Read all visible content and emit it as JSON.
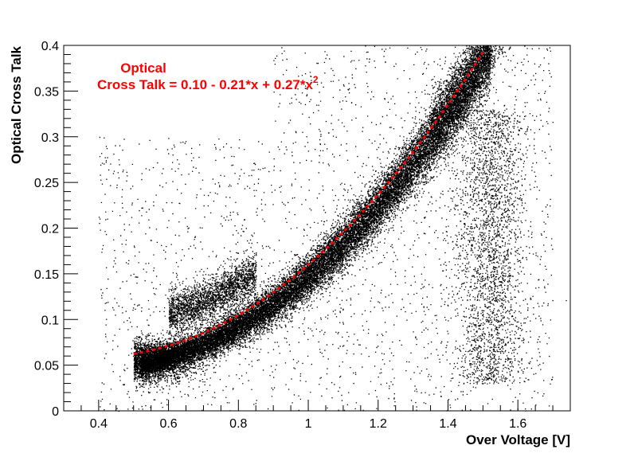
{
  "chart_data": {
    "type": "scatter",
    "title": "",
    "xlabel": "Over Voltage [V]",
    "ylabel": "Optical Cross Talk",
    "xlim": [
      0.3,
      1.75
    ],
    "ylim": [
      0,
      0.4
    ],
    "x_ticks": [
      0.4,
      0.6,
      0.8,
      1,
      1.2,
      1.4,
      1.6
    ],
    "x_tick_labels": [
      "0.4",
      "0.6",
      "0.8",
      "1",
      "1.2",
      "1.4",
      "1.6"
    ],
    "y_ticks": [
      0,
      0.05,
      0.1,
      0.15,
      0.2,
      0.25,
      0.3,
      0.35,
      0.4
    ],
    "y_tick_labels": [
      "0",
      "0.05",
      "0.1",
      "0.15",
      "0.2",
      "0.25",
      "0.3",
      "0.35",
      "0.4"
    ],
    "grid": false,
    "marker_color": "#000000",
    "fit_color": "#ff0000",
    "fit": {
      "coefficients": [
        0.1,
        -0.21,
        0.27
      ],
      "x_range": [
        0.5,
        1.5
      ],
      "line_style": "dotted"
    },
    "annotation": {
      "line1": "Optical",
      "line2_main": "Cross Talk = 0.10 - 0.21*x + 0.27*x",
      "line2_sup": "2"
    }
  }
}
